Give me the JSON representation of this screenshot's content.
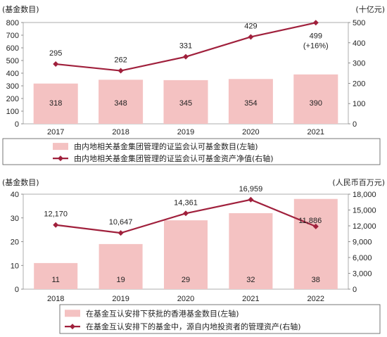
{
  "chart_data": [
    {
      "type": "bar",
      "left_unit": "(基金数目)",
      "right_unit": "(十亿元)",
      "categories": [
        "2017",
        "2018",
        "2019",
        "2020",
        "2021"
      ],
      "left_ticks": [
        "0",
        "100",
        "200",
        "300",
        "400",
        "500",
        "600",
        "700",
        "800"
      ],
      "right_ticks": [
        "0",
        "100",
        "200",
        "300",
        "400",
        "500"
      ],
      "ylim_left": [
        0,
        800
      ],
      "ylim_right": [
        0,
        500
      ],
      "series": [
        {
          "name": "由内地相关基金集团管理的证监会认可基金数目(左轴)",
          "axis": "left",
          "type": "bar",
          "color": "#f4c2c2",
          "values": [
            318,
            348,
            345,
            354,
            390
          ],
          "labels": [
            "318",
            "348",
            "345",
            "354",
            "390"
          ]
        },
        {
          "name": "由内地相关基金集团管理的证监会认可基金资产净值(右轴)",
          "axis": "right",
          "type": "line",
          "color": "#a0203c",
          "values": [
            295,
            262,
            331,
            429,
            499
          ],
          "labels": [
            "295",
            "262",
            "331",
            "429",
            "499"
          ]
        }
      ],
      "annotation": "(+16%)"
    },
    {
      "type": "bar",
      "left_unit": "(基金数目)",
      "right_unit": "(人民币百万元)",
      "categories": [
        "2018",
        "2019",
        "2020",
        "2021",
        "2022"
      ],
      "left_ticks": [
        "0",
        "10",
        "20",
        "30",
        "40"
      ],
      "right_ticks": [
        "0",
        "3,000",
        "6,000",
        "9,000",
        "12,000",
        "15,000",
        "18,000"
      ],
      "ylim_left": [
        0,
        40
      ],
      "ylim_right": [
        0,
        18000
      ],
      "series": [
        {
          "name": "在基金互认安排下获批的香港基金数目(左轴)",
          "axis": "left",
          "type": "bar",
          "color": "#f4c2c2",
          "values": [
            11,
            19,
            29,
            32,
            38
          ],
          "labels": [
            "11",
            "19",
            "29",
            "32",
            "38"
          ]
        },
        {
          "name": "在基金互认安排下的基金中，源自内地投资者的管理资产(右轴)",
          "axis": "right",
          "type": "line",
          "color": "#a0203c",
          "values": [
            12170,
            10647,
            14361,
            16959,
            11886
          ],
          "labels": [
            "12,170",
            "10,647",
            "14,361",
            "16,959",
            "11,886"
          ]
        }
      ]
    }
  ]
}
